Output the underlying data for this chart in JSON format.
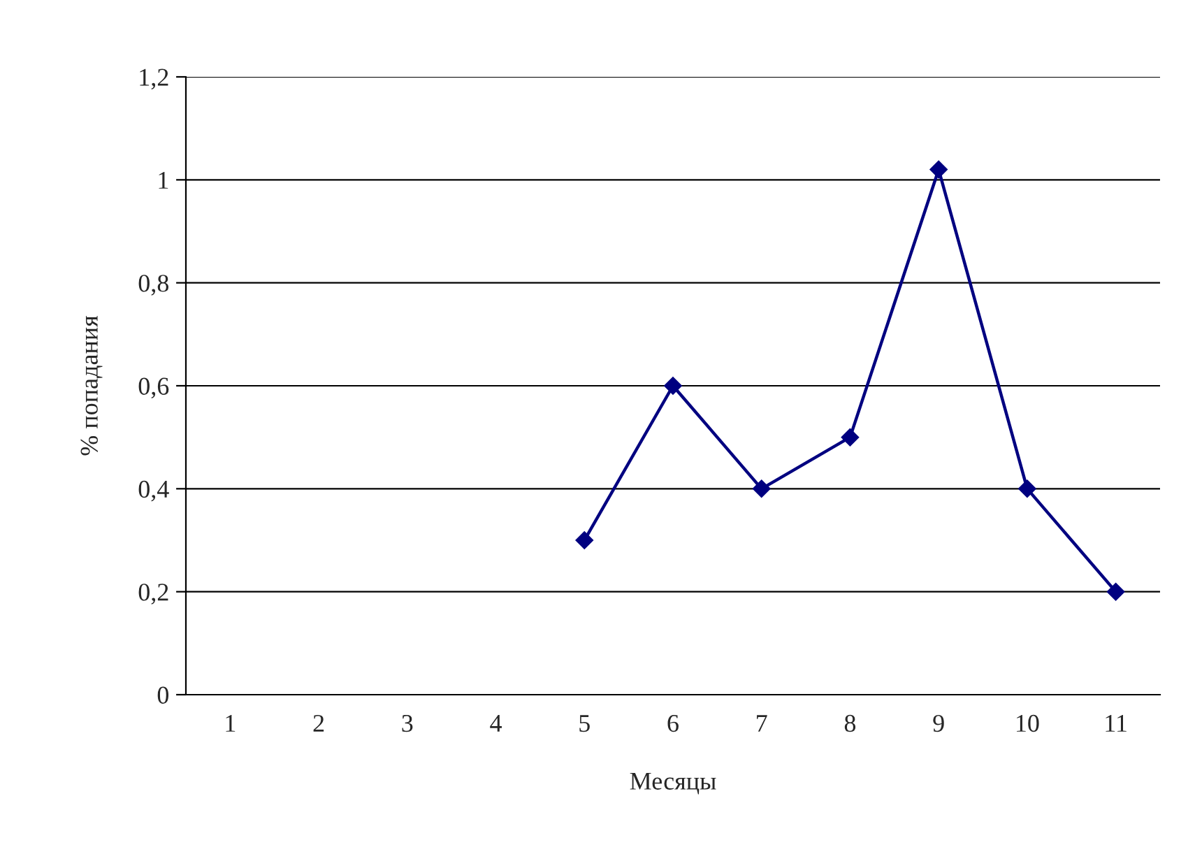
{
  "chart_data": {
    "type": "line",
    "xlabel": "Месяцы",
    "ylabel": "% попадания",
    "categories": [
      "1",
      "2",
      "3",
      "4",
      "5",
      "6",
      "7",
      "8",
      "9",
      "10",
      "11"
    ],
    "series": [
      {
        "color": "#000080",
        "values": [
          null,
          null,
          null,
          null,
          0.3,
          0.6,
          0.4,
          0.5,
          1.02,
          0.4,
          0.2
        ]
      }
    ],
    "ylim": [
      0,
      1.2
    ],
    "yticks": [
      0,
      {
        "value": 0.2,
        "label": "0,2"
      },
      {
        "value": 0.4,
        "label": "0,4"
      },
      {
        "value": 0.6,
        "label": "0,6"
      },
      {
        "value": 0.8,
        "label": "0,8"
      },
      1,
      {
        "value": 1.2,
        "label": "1,2"
      }
    ],
    "grid": "y",
    "marker": "diamond",
    "line_style": "solid",
    "legend": false
  }
}
